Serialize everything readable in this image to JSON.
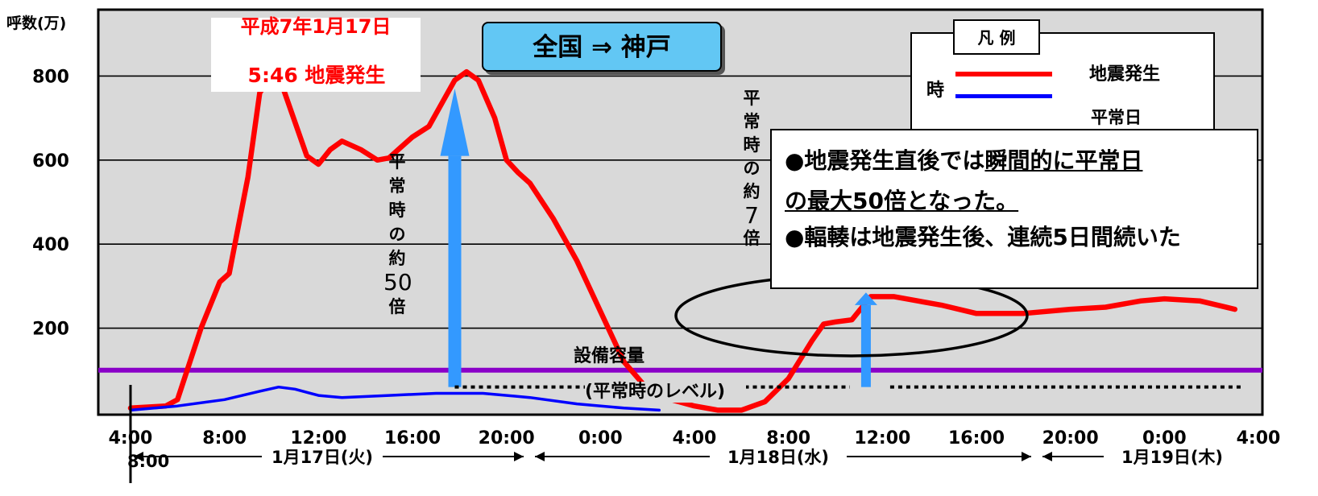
{
  "chart_data": {
    "type": "line",
    "ylabel": "呼数(万)",
    "ylim": [
      0,
      850
    ],
    "yticks": [
      200,
      400,
      600,
      800
    ],
    "x_ticks": [
      "4:00",
      "8:00",
      "12:00",
      "16:00",
      "20:00",
      "0:00",
      "4:00",
      "8:00",
      "12:00",
      "16:00",
      "20:00",
      "0:00",
      "4:00"
    ],
    "x_extra_label": "8:00",
    "x_hours_range": [
      4,
      52
    ],
    "grid": true,
    "series": [
      {
        "name": "地震発生",
        "color": "#ff0000",
        "points": [
          [
            4.0,
            10
          ],
          [
            5.5,
            15
          ],
          [
            6.0,
            30
          ],
          [
            7.0,
            200
          ],
          [
            7.8,
            310
          ],
          [
            8.2,
            330
          ],
          [
            9.0,
            560
          ],
          [
            9.5,
            760
          ],
          [
            10.0,
            800
          ],
          [
            10.5,
            770
          ],
          [
            11.0,
            690
          ],
          [
            11.5,
            610
          ],
          [
            12.0,
            590
          ],
          [
            12.5,
            625
          ],
          [
            13.0,
            645
          ],
          [
            13.8,
            625
          ],
          [
            14.5,
            600
          ],
          [
            15.0,
            605
          ],
          [
            15.5,
            630
          ],
          [
            16.0,
            655
          ],
          [
            16.7,
            680
          ],
          [
            17.3,
            740
          ],
          [
            17.8,
            790
          ],
          [
            18.3,
            810
          ],
          [
            18.8,
            790
          ],
          [
            19.5,
            700
          ],
          [
            20.0,
            600
          ],
          [
            20.5,
            570
          ],
          [
            21.0,
            545
          ],
          [
            22.0,
            460
          ],
          [
            23.0,
            360
          ],
          [
            24.0,
            240
          ],
          [
            25.0,
            120
          ],
          [
            26.0,
            55
          ],
          [
            27.0,
            30
          ],
          [
            28.0,
            15
          ],
          [
            29.0,
            5
          ],
          [
            30.0,
            5
          ],
          [
            31.0,
            25
          ],
          [
            32.0,
            80
          ],
          [
            33.0,
            170
          ],
          [
            33.5,
            210
          ],
          [
            34.0,
            215
          ],
          [
            34.7,
            220
          ],
          [
            35.5,
            275
          ],
          [
            36.5,
            275
          ],
          [
            37.5,
            265
          ],
          [
            38.5,
            255
          ],
          [
            40.0,
            235
          ],
          [
            42.0,
            235
          ],
          [
            44.0,
            245
          ],
          [
            45.5,
            250
          ],
          [
            47.0,
            265
          ],
          [
            48.0,
            270
          ],
          [
            49.5,
            265
          ],
          [
            51.0,
            245
          ]
        ]
      },
      {
        "name": "平常日",
        "color": "#0000ff",
        "points": [
          [
            4.0,
            5
          ],
          [
            6.0,
            15
          ],
          [
            8.0,
            30
          ],
          [
            9.5,
            50
          ],
          [
            10.3,
            60
          ],
          [
            11.0,
            55
          ],
          [
            12.0,
            40
          ],
          [
            13.0,
            35
          ],
          [
            15.0,
            40
          ],
          [
            17.0,
            45
          ],
          [
            19.0,
            45
          ],
          [
            21.0,
            35
          ],
          [
            23.0,
            20
          ],
          [
            25.0,
            10
          ],
          [
            26.5,
            5
          ]
        ]
      }
    ],
    "capacity": {
      "label": "設備容量",
      "value": 100,
      "color": "#8a00c8"
    },
    "normal_level_label": "(平常時のレベル)",
    "annotations": {
      "multiplier_50": [
        "平",
        "常",
        "時",
        "の",
        "約",
        "50",
        "倍"
      ],
      "multiplier_7": [
        "平",
        "常",
        "時",
        "の",
        "約",
        "7",
        "倍"
      ]
    },
    "legend": {
      "title": "凡 例",
      "left_label": "時",
      "entries": [
        {
          "label": "地震発生",
          "color": "#ff0000"
        },
        {
          "label": "平常日",
          "color": "#0000ff"
        }
      ]
    },
    "dates": [
      "1月17日(火)",
      "1月18日(水)",
      "1月19日(木)"
    ]
  },
  "header": {
    "title": "全国 ⇒ 神戸"
  },
  "quake_note": {
    "line1": "平成7年1月17日",
    "line2": "5:46 地震発生"
  },
  "callout": {
    "line1_a": "●地震発生直後では",
    "line1_b": "瞬間的に平常日",
    "line2": "の最大50倍となった。",
    "line3": "●輻輳は地震発生後、連続5日間続いた"
  }
}
